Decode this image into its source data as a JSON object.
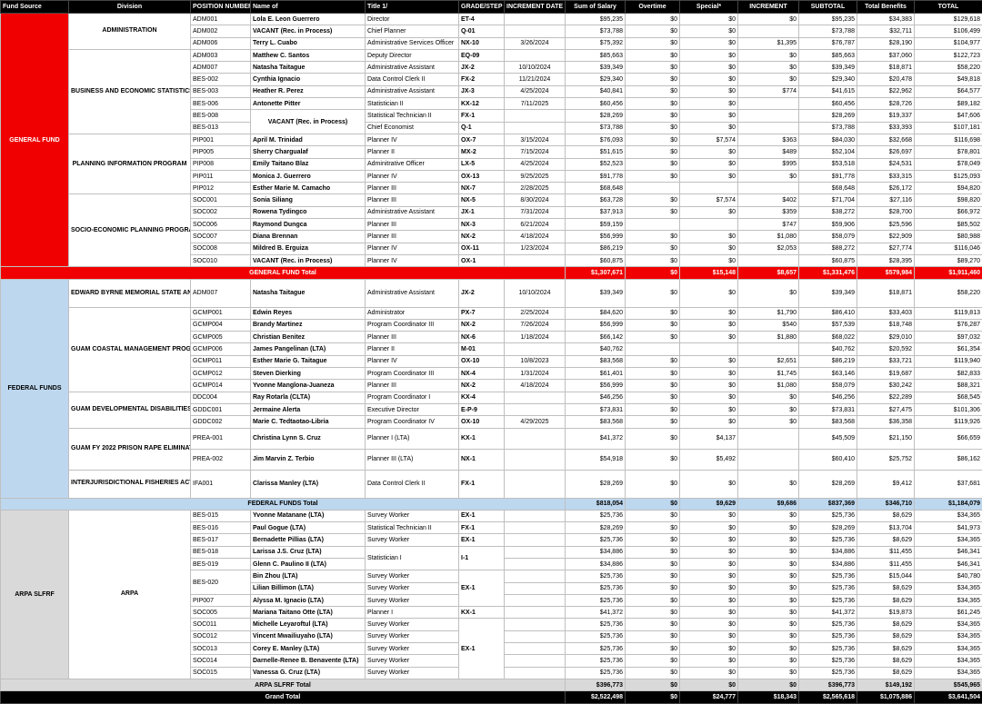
{
  "headers": [
    "Fund Source",
    "Division",
    "POSITION NUMBER",
    "Name of",
    "Title 1/",
    "GRADE/STEP",
    "INCREMENT DATE",
    "Sum of Salary",
    "Overtime",
    "Special*",
    "INCREMENT",
    "SUBTOTAL",
    "Total Benefits",
    "TOTAL"
  ],
  "fund_sources": {
    "general": "GENERAL FUND",
    "federal": "FEDERAL FUNDS",
    "arpa": "ARPA SLFRF"
  },
  "divisions": {
    "admin": "ADMINISTRATION",
    "bes": "BUSINESS AND ECONOMIC STATISTICS PROGRAM",
    "pip": "PLANNING INFORMATION PROGRAM",
    "soc": "SOCIO-ECONOMIC PLANNING  PROGRAM",
    "byrne": "EDWARD BYRNE MEMORIAL STATE AND LOCAL LAW ENFORCEMENT FORMULA GRANT",
    "gcmp": "GUAM COASTAL MANAGEMENT PROGRAM",
    "gddc": "GUAM DEVELOPMENTAL DISABILITIES COUNCIL (100% FEDERALLY FUNDED)",
    "prea": "GUAM FY 2022 PRISON RAPE ELIMINATION ACT (PREA) REALLOCATION FUNDS PROGRAM",
    "ifa": "INTERJURISDICTIONAL FISHERIES ACT GRANT PROGRAM (100% FEDERALLY FUNDED)",
    "arpa": "ARPA"
  },
  "merged": {
    "bes_vacant": "VACANT (Rec. in Process)",
    "bes_stat1_title": "Statistician I",
    "bes_stat1_grade": "I-1",
    "arpa_ex1_a": "EX-1",
    "arpa_kx1": "KX-1",
    "arpa_ex1_b": "EX-1"
  },
  "rows": [
    {
      "pos": "ADM001",
      "name": "Lola E. Leon Guerrero",
      "title": "Director",
      "grade": "ET-4",
      "date": "",
      "salary": "$95,235",
      "ot": "$0",
      "special": "$0",
      "incr": "$0",
      "subtotal": "$95,235",
      "benefits": "$34,383",
      "total": "$129,618"
    },
    {
      "pos": "ADM002",
      "name": "VACANT (Rec. in Process)",
      "title": "Chief Planner",
      "grade": "Q-01",
      "date": "",
      "salary": "$73,788",
      "ot": "$0",
      "special": "$0",
      "incr": "",
      "subtotal": "$73,788",
      "benefits": "$32,711",
      "total": "$106,499"
    },
    {
      "pos": "ADM006",
      "name": "Terry L. Cuabo",
      "title": "Administrative Services Officer",
      "grade": "NX-10",
      "date": "3/26/2024",
      "salary": "$75,392",
      "ot": "$0",
      "special": "$0",
      "incr": "$1,395",
      "subtotal": "$76,787",
      "benefits": "$28,190",
      "total": "$104,977"
    },
    {
      "pos": "ADM003",
      "name": "Matthew C. Santos",
      "title": "Deputy Director",
      "grade": "EQ-09",
      "date": "",
      "salary": "$85,663",
      "ot": "$0",
      "special": "$0",
      "incr": "$0",
      "subtotal": "$85,663",
      "benefits": "$37,060",
      "total": "$122,723"
    },
    {
      "pos": "ADM007",
      "name": "Natasha Taitague",
      "title": "Administrative Assistant",
      "grade": "JX-2",
      "date": "10/10/2024",
      "salary": "$39,349",
      "ot": "$0",
      "special": "$0",
      "incr": "$0",
      "subtotal": "$39,349",
      "benefits": "$18,871",
      "total": "$58,220"
    },
    {
      "pos": "BES-002",
      "name": "Cynthia Ignacio",
      "title": "Data Control Clerk II",
      "grade": "FX-2",
      "date": "11/21/2024",
      "salary": "$29,340",
      "ot": "$0",
      "special": "$0",
      "incr": "$0",
      "subtotal": "$29,340",
      "benefits": "$20,478",
      "total": "$49,818"
    },
    {
      "pos": "BES-003",
      "name": "Heather R. Perez",
      "title": "Administrative Assistant",
      "grade": "JX-3",
      "date": "4/25/2024",
      "salary": "$40,841",
      "ot": "$0",
      "special": "$0",
      "incr": "$774",
      "subtotal": "$41,615",
      "benefits": "$22,962",
      "total": "$64,577"
    },
    {
      "pos": "BES-006",
      "name": "Antonette Pitter",
      "title": "Statistician II",
      "grade": "KX-12",
      "date": "7/11/2025",
      "salary": "$60,456",
      "ot": "$0",
      "special": "$0",
      "incr": "",
      "subtotal": "$60,456",
      "benefits": "$28,726",
      "total": "$89,182"
    },
    {
      "pos": "BES-008",
      "name": "",
      "title": "Statistical Technician II",
      "grade": "FX-1",
      "date": "",
      "salary": "$28,269",
      "ot": "$0",
      "special": "$0",
      "incr": "",
      "subtotal": "$28,269",
      "benefits": "$19,337",
      "total": "$47,606"
    },
    {
      "pos": "BES-013",
      "name": "",
      "title": "Chief Economist",
      "grade": "Q-1",
      "date": "",
      "salary": "$73,788",
      "ot": "$0",
      "special": "$0",
      "incr": "",
      "subtotal": "$73,788",
      "benefits": "$33,393",
      "total": "$107,181"
    },
    {
      "pos": "PIP001",
      "name": "April M. Trinidad",
      "title": "Planner IV",
      "grade": "OX-7",
      "date": "3/15/2024",
      "salary": "$76,093",
      "ot": "$0",
      "special": "$7,574",
      "incr": "$363",
      "subtotal": "$84,030",
      "benefits": "$32,668",
      "total": "$116,698"
    },
    {
      "pos": "PIP005",
      "name": "Sherry Chargualaf",
      "title": "Planner II",
      "grade": "MX-2",
      "date": "7/15/2024",
      "salary": "$51,615",
      "ot": "$0",
      "special": "$0",
      "incr": "$489",
      "subtotal": "$52,104",
      "benefits": "$26,697",
      "total": "$78,801"
    },
    {
      "pos": "PIP008",
      "name": "Emily Taitano Blaz",
      "title": "Adminitrative Officer",
      "grade": "LX-5",
      "date": "4/25/2024",
      "salary": "$52,523",
      "ot": "$0",
      "special": "$0",
      "incr": "$995",
      "subtotal": "$53,518",
      "benefits": "$24,531",
      "total": "$78,049"
    },
    {
      "pos": "PIP011",
      "name": "Monica J. Guerrero",
      "title": "Planner IV",
      "grade": "OX-13",
      "date": "9/25/2025",
      "salary": "$91,778",
      "ot": "$0",
      "special": "$0",
      "incr": "$0",
      "subtotal": "$91,778",
      "benefits": "$33,315",
      "total": "$125,093"
    },
    {
      "pos": "PIP012",
      "name": "Esther Marie M. Camacho",
      "title": "Planner III",
      "grade": "NX-7",
      "date": "2/28/2025",
      "salary": "$68,648",
      "ot": "",
      "special": "",
      "incr": "",
      "subtotal": "$68,648",
      "benefits": "$26,172",
      "total": "$94,820"
    },
    {
      "pos": "SOC001",
      "name": "Sonia Siliang",
      "title": "Planner III",
      "grade": "NX-5",
      "date": "8/30/2024",
      "salary": "$63,728",
      "ot": "$0",
      "special": "$7,574",
      "incr": "$402",
      "subtotal": "$71,704",
      "benefits": "$27,116",
      "total": "$98,820"
    },
    {
      "pos": "SOC002",
      "name": "Rowena Tydingco",
      "title": "Administrative Assistant",
      "grade": "JX-1",
      "date": "7/31/2024",
      "salary": "$37,913",
      "ot": "$0",
      "special": "$0",
      "incr": "$359",
      "subtotal": "$38,272",
      "benefits": "$28,700",
      "total": "$66,972"
    },
    {
      "pos": "SOC006",
      "name": "Raymond Dungca",
      "title": "Planner III",
      "grade": "NX-3",
      "date": "6/21/2024",
      "salary": "$59,159",
      "ot": "",
      "special": "",
      "incr": "$747",
      "subtotal": "$59,906",
      "benefits": "$25,596",
      "total": "$85,502"
    },
    {
      "pos": "SOC007",
      "name": "Diana Brennan",
      "title": "Planner III",
      "grade": "NX-2",
      "date": "4/18/2024",
      "salary": "$56,999",
      "ot": "$0",
      "special": "$0",
      "incr": "$1,080",
      "subtotal": "$58,079",
      "benefits": "$22,909",
      "total": "$80,988"
    },
    {
      "pos": "SOC008",
      "name": "Mildred B. Erguiza",
      "title": "Planner IV",
      "grade": "OX-11",
      "date": "1/23/2024",
      "salary": "$86,219",
      "ot": "$0",
      "special": "$0",
      "incr": "$2,053",
      "subtotal": "$88,272",
      "benefits": "$27,774",
      "total": "$116,046"
    },
    {
      "pos": "SOC010",
      "name": "VACANT (Rec. in Process)",
      "title": "Planner IV",
      "grade": "OX-1",
      "date": "",
      "salary": "$60,875",
      "ot": "$0",
      "special": "$0",
      "incr": "",
      "subtotal": "$60,875",
      "benefits": "$28,395",
      "total": "$89,270"
    }
  ],
  "general_total": {
    "label": "GENERAL FUND Total",
    "salary": "$1,307,671",
    "ot": "$0",
    "special": "$15,148",
    "incr": "$8,657",
    "subtotal": "$1,331,476",
    "benefits": "$579,984",
    "total": "$1,911,460"
  },
  "fed_rows": [
    {
      "pos": "ADM007",
      "name": "Natasha Taitague",
      "title": "Administrative Assistant",
      "grade": "JX-2",
      "date": "10/10/2024",
      "salary": "$39,349",
      "ot": "$0",
      "special": "$0",
      "incr": "$0",
      "subtotal": "$39,349",
      "benefits": "$18,871",
      "total": "$58,220"
    },
    {
      "pos": "GCMP001",
      "name": "Edwin Reyes",
      "title": "Administrator",
      "grade": "PX-7",
      "date": "2/25/2024",
      "salary": "$84,620",
      "ot": "$0",
      "special": "$0",
      "incr": "$1,790",
      "subtotal": "$86,410",
      "benefits": "$33,403",
      "total": "$119,813"
    },
    {
      "pos": "GCMP004",
      "name": "Brandy Martinez",
      "title": "Program Coordinator III",
      "grade": "NX-2",
      "date": "7/26/2024",
      "salary": "$56,999",
      "ot": "$0",
      "special": "$0",
      "incr": "$540",
      "subtotal": "$57,539",
      "benefits": "$18,748",
      "total": "$76,287"
    },
    {
      "pos": "GCMP005",
      "name": "Christian Benitez",
      "title": "Planner III",
      "grade": "NX-6",
      "date": "1/18/2024",
      "salary": "$66,142",
      "ot": "$0",
      "special": "$0",
      "incr": "$1,880",
      "subtotal": "$68,022",
      "benefits": "$29,010",
      "total": "$97,032"
    },
    {
      "pos": "GCMP006",
      "name": "James Pangelinan (LTA)",
      "title": "Planner II",
      "grade": "M-01",
      "date": "",
      "salary": "$40,762",
      "ot": "",
      "special": "",
      "incr": "",
      "subtotal": "$40,762",
      "benefits": "$20,592",
      "total": "$61,354"
    },
    {
      "pos": "GCMP011",
      "name": "Esther Marie G. Taitague",
      "title": "Planner IV",
      "grade": "OX-10",
      "date": "10/8/2023",
      "salary": "$83,568",
      "ot": "$0",
      "special": "$0",
      "incr": "$2,651",
      "subtotal": "$86,219",
      "benefits": "$33,721",
      "total": "$119,940"
    },
    {
      "pos": "GCMP012",
      "name": "Steven Dierking",
      "title": "Program Coordinator III",
      "grade": "NX-4",
      "date": "1/31/2024",
      "salary": "$61,401",
      "ot": "$0",
      "special": "$0",
      "incr": "$1,745",
      "subtotal": "$63,146",
      "benefits": "$19,687",
      "total": "$82,833"
    },
    {
      "pos": "GCMP014",
      "name": "Yvonne Manglona-Juaneza",
      "title": "Planner III",
      "grade": "NX-2",
      "date": "4/18/2024",
      "salary": "$56,999",
      "ot": "$0",
      "special": "$0",
      "incr": "$1,080",
      "subtotal": "$58,079",
      "benefits": "$30,242",
      "total": "$88,321"
    },
    {
      "pos": "DDC004",
      "name": "Ray Rotarla (CLTA)",
      "title": "Program Coordinator I",
      "grade": "KX-4",
      "date": "",
      "salary": "$46,256",
      "ot": "$0",
      "special": "$0",
      "incr": "$0",
      "subtotal": "$46,256",
      "benefits": "$22,289",
      "total": "$68,545"
    },
    {
      "pos": "GDDC001",
      "name": "Jermaine Alerta",
      "title": "Executive Director",
      "grade": "E-P-9",
      "date": "",
      "salary": "$73,831",
      "ot": "$0",
      "special": "$0",
      "incr": "$0",
      "subtotal": "$73,831",
      "benefits": "$27,475",
      "total": "$101,306"
    },
    {
      "pos": "GDDC002",
      "name": "Marie C. Tedtaotao-Libria",
      "title": "Program Coordinator IV",
      "grade": "OX-10",
      "date": "4/29/2025",
      "salary": "$83,568",
      "ot": "$0",
      "special": "$0",
      "incr": "$0",
      "subtotal": "$83,568",
      "benefits": "$36,358",
      "total": "$119,926"
    },
    {
      "pos": "PREA-001",
      "name": "Christina Lynn S. Cruz",
      "title": "Planner I (LTA)",
      "grade": "KX-1",
      "date": "",
      "salary": "$41,372",
      "ot": "$0",
      "special": "$4,137",
      "incr": "",
      "subtotal": "$45,509",
      "benefits": "$21,150",
      "total": "$66,659"
    },
    {
      "pos": "PREA-002",
      "name": "Jim Marvin Z. Terbio",
      "title": "Planner III (LTA)",
      "grade": "NX-1",
      "date": "",
      "salary": "$54,918",
      "ot": "$0",
      "special": "$5,492",
      "incr": "",
      "subtotal": "$60,410",
      "benefits": "$25,752",
      "total": "$86,162"
    },
    {
      "pos": "IFA001",
      "name": "Clarissa Manley (LTA)",
      "title": "Data Control Clerk II",
      "grade": "FX-1",
      "date": "",
      "salary": "$28,269",
      "ot": "$0",
      "special": "$0",
      "incr": "$0",
      "subtotal": "$28,269",
      "benefits": "$9,412",
      "total": "$37,681"
    }
  ],
  "federal_total": {
    "label": "FEDERAL FUNDS Total",
    "salary": "$818,054",
    "ot": "$0",
    "special": "$9,629",
    "incr": "$9,686",
    "subtotal": "$837,369",
    "benefits": "$346,710",
    "total": "$1,184,079"
  },
  "arpa_rows": [
    {
      "pos": "BES-015",
      "name": "Yvonne Matanane (LTA)",
      "title": "Survey Worker",
      "grade": "EX-1",
      "salary": "$25,736",
      "ot": "$0",
      "special": "$0",
      "incr": "$0",
      "subtotal": "$25,736",
      "benefits": "$8,629",
      "total": "$34,365"
    },
    {
      "pos": "BES-016",
      "name": "Paul Gogue (LTA)",
      "title": "Statistical Technician II",
      "grade": "FX-1",
      "salary": "$28,269",
      "ot": "$0",
      "special": "$0",
      "incr": "$0",
      "subtotal": "$28,269",
      "benefits": "$13,704",
      "total": "$41,973"
    },
    {
      "pos": "BES-017",
      "name": "Bernadette Pillias (LTA)",
      "title": "Survey Worker",
      "grade": "EX-1",
      "salary": "$25,736",
      "ot": "$0",
      "special": "$0",
      "incr": "$0",
      "subtotal": "$25,736",
      "benefits": "$8,629",
      "total": "$34,365"
    },
    {
      "pos": "BES-018",
      "name": "Larissa J.S. Cruz (LTA)",
      "title": "",
      "grade": "",
      "salary": "$34,886",
      "ot": "$0",
      "special": "$0",
      "incr": "$0",
      "subtotal": "$34,886",
      "benefits": "$11,455",
      "total": "$46,341"
    },
    {
      "pos": "BES-019",
      "name": "Glenn C. Paulino II (LTA)",
      "title": "",
      "grade": "",
      "salary": "$34,886",
      "ot": "$0",
      "special": "$0",
      "incr": "$0",
      "subtotal": "$34,886",
      "benefits": "$11,455",
      "total": "$46,341"
    },
    {
      "pos": "",
      "name": "Bin Zhou (LTA)",
      "title": "Survey Worker",
      "grade": "",
      "salary": "$25,736",
      "ot": "$0",
      "special": "$0",
      "incr": "$0",
      "subtotal": "$25,736",
      "benefits": "$15,044",
      "total": "$40,780"
    },
    {
      "pos": "",
      "name": "Lilian Billimon (LTA)",
      "title": "Survey Worker",
      "grade": "",
      "salary": "$25,736",
      "ot": "$0",
      "special": "$0",
      "incr": "$0",
      "subtotal": "$25,736",
      "benefits": "$8,629",
      "total": "$34,365"
    },
    {
      "pos": "PIP007",
      "name": "Alyssa M. Ignacio (LTA)",
      "title": "Survey Worker",
      "grade": "",
      "salary": "$25,736",
      "ot": "$0",
      "special": "$0",
      "incr": "$0",
      "subtotal": "$25,736",
      "benefits": "$8,629",
      "total": "$34,365"
    },
    {
      "pos": "SOC005",
      "name": "Mariana Taitano Otte (LTA)",
      "title": "Planner I",
      "grade": "",
      "salary": "$41,372",
      "ot": "$0",
      "special": "$0",
      "incr": "$0",
      "subtotal": "$41,372",
      "benefits": "$19,873",
      "total": "$61,245"
    },
    {
      "pos": "SOC011",
      "name": "Michelle Leyaroftul (LTA)",
      "title": "Survey Worker",
      "grade": "",
      "salary": "$25,736",
      "ot": "$0",
      "special": "$0",
      "incr": "$0",
      "subtotal": "$25,736",
      "benefits": "$8,629",
      "total": "$34,365"
    },
    {
      "pos": "SOC012",
      "name": "Vincent Mwailiuyaho (LTA)",
      "title": "Survey Worker",
      "grade": "",
      "salary": "$25,736",
      "ot": "$0",
      "special": "$0",
      "incr": "$0",
      "subtotal": "$25,736",
      "benefits": "$8,629",
      "total": "$34,365"
    },
    {
      "pos": "SOC013",
      "name": "Corey E. Manley (LTA)",
      "title": "Survey Worker",
      "grade": "",
      "salary": "$25,736",
      "ot": "$0",
      "special": "$0",
      "incr": "$0",
      "subtotal": "$25,736",
      "benefits": "$8,629",
      "total": "$34,365"
    },
    {
      "pos": "SOC014",
      "name": "Darnelle-Renee B. Benavente (LTA)",
      "title": "Survey Worker",
      "grade": "",
      "salary": "$25,736",
      "ot": "$0",
      "special": "$0",
      "incr": "$0",
      "subtotal": "$25,736",
      "benefits": "$8,629",
      "total": "$34,365"
    },
    {
      "pos": "SOC015",
      "name": "Vanessa G. Cruz (LTA)",
      "title": "Survey Worker",
      "grade": "",
      "salary": "$25,736",
      "ot": "$0",
      "special": "$0",
      "incr": "$0",
      "subtotal": "$25,736",
      "benefits": "$8,629",
      "total": "$34,365"
    }
  ],
  "arpa_total": {
    "label": "ARPA SLFRF Total",
    "salary": "$396,773",
    "ot": "$0",
    "special": "$0",
    "incr": "$0",
    "subtotal": "$396,773",
    "benefits": "$149,192",
    "total": "$545,965"
  },
  "arpa_bes020": "BES-020",
  "grand_total": {
    "label": "Grand Total",
    "salary": "$2,522,498",
    "ot": "$0",
    "special": "$24,777",
    "incr": "$18,343",
    "subtotal": "$2,565,618",
    "benefits": "$1,075,886",
    "total": "$3,641,504"
  },
  "colors": {
    "general": "#f00000",
    "federal": "#bdd7ee",
    "arpa": "#d9d9d9",
    "header": "#000000"
  }
}
